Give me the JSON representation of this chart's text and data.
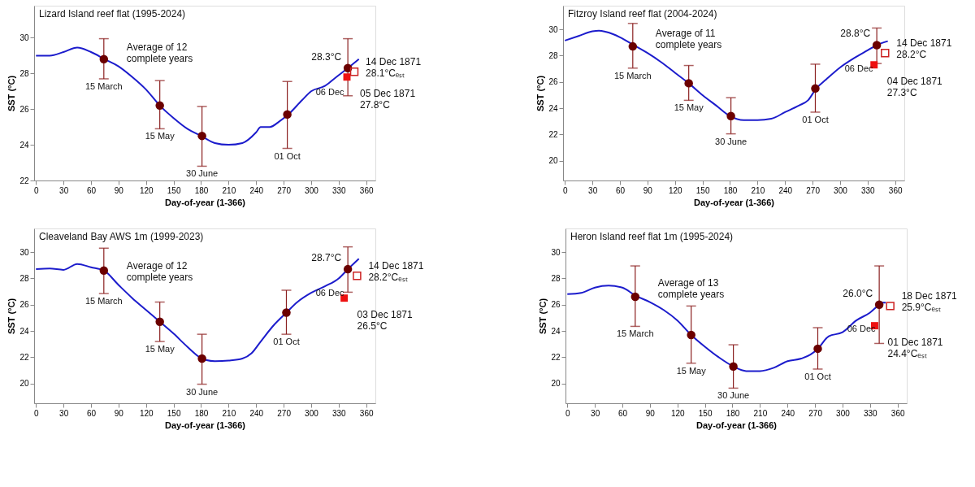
{
  "chart_data": [
    {
      "type": "line",
      "title": "Lizard Island  reef flat (1995-2024)",
      "xlabel": "Day-of-year (1-366)",
      "ylabel": "SST (°C)",
      "xlim": [
        -2,
        370
      ],
      "xticks": [
        0,
        30,
        60,
        90,
        120,
        150,
        180,
        210,
        240,
        270,
        300,
        330,
        360
      ],
      "ylim": [
        22,
        31.8
      ],
      "yticks": [
        22,
        24,
        26,
        28,
        30
      ],
      "grid": false,
      "series": [
        {
          "color": "#1c1ccc",
          "x": [
            0,
            15,
            30,
            45,
            60,
            75,
            90,
            105,
            120,
            135,
            150,
            165,
            180,
            195,
            210,
            225,
            240,
            245,
            255,
            265,
            275,
            290,
            300,
            315,
            325,
            340,
            352
          ],
          "values": [
            29.0,
            29.0,
            29.2,
            29.45,
            29.2,
            28.8,
            28.4,
            27.8,
            27.1,
            26.2,
            25.5,
            24.9,
            24.5,
            24.1,
            24.0,
            24.1,
            24.7,
            25.0,
            25.0,
            25.3,
            25.7,
            26.5,
            27.0,
            27.3,
            27.7,
            28.3,
            28.8
          ]
        },
        {
          "type": "scatter",
          "marker": "circle",
          "color": "#6b0000",
          "x": [
            74,
            135,
            181,
            274,
            340
          ],
          "values": [
            28.8,
            26.2,
            24.5,
            25.7,
            28.3
          ],
          "errors": [
            [
              27.7,
              29.95
            ],
            [
              24.9,
              27.6
            ],
            [
              22.8,
              26.15
            ],
            [
              23.8,
              27.55
            ],
            [
              26.75,
              29.95
            ]
          ]
        },
        {
          "type": "scatter",
          "marker": "square",
          "color": "#ee1111",
          "x": [
            339
          ],
          "values": [
            27.8
          ]
        },
        {
          "type": "scatter",
          "marker": "square",
          "color": "#cc2222",
          "x": [
            347
          ],
          "values": [
            28.1
          ]
        }
      ],
      "annotations": [
        {
          "text": "15 March",
          "x": 74,
          "y": 27.7
        },
        {
          "text": "15 May",
          "x": 135,
          "y": 24.9
        },
        {
          "text": "30 June",
          "x": 181,
          "y": 22.8
        },
        {
          "text": "01 Oct",
          "x": 274,
          "y": 23.8
        },
        {
          "text": "06 Dec",
          "x": 340,
          "y": 28.3
        },
        {
          "text": "Average of 12\ncomplete years",
          "x": 90,
          "y": 28.4
        },
        {
          "text": "28.3°C",
          "x": 340,
          "y": 28.3
        },
        {
          "text": "14 Dec 1871\n28.1°Cₑₛₜ",
          "x": 347,
          "y": 28.1
        },
        {
          "text": "05 Dec 1871\n27.8°C",
          "x": 339,
          "y": 27.8
        }
      ]
    },
    {
      "type": "line",
      "title": "Fitzroy Island  reef flat (2004-2024)",
      "xlabel": "Day-of-year (1-366)",
      "ylabel": "SST (°C)",
      "xlim": [
        -2,
        370
      ],
      "xticks": [
        0,
        30,
        60,
        90,
        120,
        150,
        180,
        210,
        240,
        270,
        300,
        330,
        360
      ],
      "ylim": [
        18.5,
        31.8
      ],
      "yticks": [
        20,
        22,
        24,
        26,
        28,
        30
      ],
      "grid": false,
      "series": [
        {
          "color": "#1c1ccc",
          "x": [
            0,
            15,
            30,
            37,
            45,
            60,
            75,
            90,
            105,
            120,
            135,
            150,
            165,
            180,
            195,
            210,
            225,
            240,
            255,
            265,
            274,
            285,
            300,
            315,
            330,
            340,
            352
          ],
          "values": [
            29.15,
            29.5,
            29.85,
            29.9,
            29.8,
            29.4,
            28.8,
            28.2,
            27.5,
            26.7,
            25.9,
            25.0,
            24.2,
            23.4,
            23.1,
            23.1,
            23.2,
            23.7,
            24.2,
            24.6,
            25.5,
            26.2,
            27.1,
            27.8,
            28.4,
            28.8,
            29.1
          ]
        },
        {
          "type": "scatter",
          "marker": "circle",
          "color": "#6b0000",
          "x": [
            74,
            135,
            181,
            273,
            340
          ],
          "values": [
            28.7,
            25.9,
            23.4,
            25.5,
            28.8
          ],
          "errors": [
            [
              27.05,
              30.45
            ],
            [
              24.6,
              27.25
            ],
            [
              22.05,
              24.8
            ],
            [
              23.7,
              27.35
            ],
            [
              27.4,
              30.1
            ]
          ]
        },
        {
          "type": "scatter",
          "marker": "square",
          "color": "#ee1111",
          "x": [
            337
          ],
          "values": [
            27.3
          ]
        },
        {
          "type": "scatter",
          "marker": "square",
          "color": "#cc2222",
          "x": [
            349
          ],
          "values": [
            28.2
          ]
        }
      ],
      "annotations": [
        {
          "text": "15 March",
          "x": 74,
          "y": 27.05
        },
        {
          "text": "15 May",
          "x": 135,
          "y": 24.6
        },
        {
          "text": "30 June",
          "x": 181,
          "y": 22.05
        },
        {
          "text": "01 Oct",
          "x": 273,
          "y": 23.7
        },
        {
          "text": "06 Dec",
          "x": 340,
          "y": 28.8
        },
        {
          "text": "Average of 11\ncomplete years",
          "x": 90,
          "y": 28.2
        },
        {
          "text": "28.8°C",
          "x": 340,
          "y": 28.8
        },
        {
          "text": "14 Dec 1871\n28.2°C",
          "x": 349,
          "y": 28.2
        },
        {
          "text": "04 Dec 1871\n27.3°C",
          "x": 337,
          "y": 27.3
        }
      ]
    },
    {
      "type": "line",
      "title": "Cleaveland Bay AWS 1m (1999-2023)",
      "xlabel": "Day-of-year (1-366)",
      "ylabel": "SST (°C)",
      "xlim": [
        -2,
        370
      ],
      "xticks": [
        0,
        30,
        60,
        90,
        120,
        150,
        180,
        210,
        240,
        270,
        300,
        330,
        360
      ],
      "ylim": [
        18.5,
        31.8
      ],
      "yticks": [
        20,
        22,
        24,
        26,
        28,
        30
      ],
      "grid": false,
      "series": [
        {
          "color": "#1c1ccc",
          "x": [
            0,
            15,
            30,
            45,
            60,
            74,
            90,
            105,
            120,
            135,
            150,
            165,
            181,
            195,
            210,
            225,
            235,
            245,
            260,
            273,
            285,
            300,
            315,
            330,
            340,
            352
          ],
          "values": [
            28.7,
            28.75,
            28.65,
            29.1,
            28.85,
            28.6,
            27.5,
            26.5,
            25.6,
            24.7,
            23.8,
            22.8,
            21.9,
            21.7,
            21.75,
            21.9,
            22.3,
            23.2,
            24.5,
            25.4,
            26.2,
            26.9,
            27.4,
            28.0,
            28.7,
            29.5
          ]
        },
        {
          "type": "scatter",
          "marker": "circle",
          "color": "#6b0000",
          "x": [
            74,
            135,
            181,
            273,
            340
          ],
          "values": [
            28.6,
            24.7,
            21.9,
            25.4,
            28.7
          ],
          "errors": [
            [
              26.85,
              30.3
            ],
            [
              23.2,
              26.2
            ],
            [
              19.95,
              23.75
            ],
            [
              23.75,
              27.1
            ],
            [
              26.95,
              30.4
            ]
          ]
        },
        {
          "type": "scatter",
          "marker": "square",
          "color": "#ee1111",
          "x": [
            336
          ],
          "values": [
            26.5
          ]
        },
        {
          "type": "scatter",
          "marker": "square",
          "color": "#cc2222",
          "x": [
            350
          ],
          "values": [
            28.2
          ]
        }
      ],
      "annotations": [
        {
          "text": "15 March",
          "x": 74,
          "y": 26.85
        },
        {
          "text": "15 May",
          "x": 135,
          "y": 23.2
        },
        {
          "text": "30 June",
          "x": 181,
          "y": 19.95
        },
        {
          "text": "01 Oct",
          "x": 273,
          "y": 23.75
        },
        {
          "text": "06 Dec",
          "x": 340,
          "y": 28.7
        },
        {
          "text": "Average of 12\ncomplete years",
          "x": 90,
          "y": 27.5
        },
        {
          "text": "28.7°C",
          "x": 340,
          "y": 28.7
        },
        {
          "text": "14 Dec 1871\n28.2°Cₑₛₜ",
          "x": 350,
          "y": 28.2
        },
        {
          "text": "03 Dec 1871\n26.5°C",
          "x": 336,
          "y": 26.5
        }
      ]
    },
    {
      "type": "line",
      "title": "Heron Island reef flat 1m (1995-2024)",
      "xlabel": "Day-of-year (1-366)",
      "ylabel": "SST (°C)",
      "xlim": [
        -2,
        370
      ],
      "xticks": [
        0,
        30,
        60,
        90,
        120,
        150,
        180,
        210,
        240,
        270,
        300,
        330,
        360
      ],
      "ylim": [
        18.5,
        31.8
      ],
      "yticks": [
        20,
        22,
        24,
        26,
        28,
        30
      ],
      "grid": false,
      "series": [
        {
          "color": "#1c1ccc",
          "x": [
            0,
            15,
            30,
            45,
            60,
            74,
            90,
            105,
            120,
            135,
            150,
            165,
            181,
            195,
            210,
            225,
            240,
            255,
            265,
            273,
            285,
            300,
            315,
            330,
            340,
            343,
            347
          ],
          "values": [
            26.8,
            26.9,
            27.3,
            27.45,
            27.3,
            26.7,
            26.2,
            25.6,
            24.8,
            23.7,
            22.8,
            22.0,
            21.3,
            20.95,
            20.95,
            21.2,
            21.7,
            21.9,
            22.2,
            22.65,
            23.6,
            23.9,
            24.8,
            25.4,
            26.0,
            26.15,
            26.15
          ]
        },
        {
          "type": "scatter",
          "marker": "circle",
          "color": "#6b0000",
          "x": [
            74,
            135,
            181,
            273,
            340
          ],
          "values": [
            26.6,
            23.7,
            21.3,
            22.65,
            26.0
          ],
          "errors": [
            [
              24.35,
              28.95
            ],
            [
              21.55,
              25.9
            ],
            [
              19.65,
              22.95
            ],
            [
              21.1,
              24.25
            ],
            [
              23.05,
              28.95
            ]
          ]
        },
        {
          "type": "scatter",
          "marker": "square",
          "color": "#ee1111",
          "x": [
            335
          ],
          "values": [
            24.4
          ]
        },
        {
          "type": "scatter",
          "marker": "square",
          "color": "#cc2222",
          "x": [
            352
          ],
          "values": [
            25.9
          ]
        }
      ],
      "annotations": [
        {
          "text": "15 March",
          "x": 74,
          "y": 24.35
        },
        {
          "text": "15 May",
          "x": 135,
          "y": 21.55
        },
        {
          "text": "30 June",
          "x": 181,
          "y": 19.65
        },
        {
          "text": "01 Oct",
          "x": 273,
          "y": 21.1
        },
        {
          "text": "06 Dec",
          "x": 340,
          "y": 26.0
        },
        {
          "text": "Average of 13\ncomplete years",
          "x": 90,
          "y": 26.2
        },
        {
          "text": "26.0°C",
          "x": 340,
          "y": 26.0
        },
        {
          "text": "18 Dec 1871\n25.9°Cₑₛₜ",
          "x": 352,
          "y": 25.9
        },
        {
          "text": "01 Dec 1871\n24.4°Cₑₛₜ",
          "x": 335,
          "y": 24.4
        }
      ]
    }
  ]
}
